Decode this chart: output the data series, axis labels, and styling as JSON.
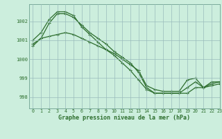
{
  "background_color": "#cceedd",
  "plot_bg_color": "#cceedd",
  "grid_color": "#99bbbb",
  "line_color": "#2d6e2d",
  "title": "Graphe pression niveau de la mer (hPa)",
  "ylabel_ticks": [
    998,
    999,
    1000,
    1001,
    1002
  ],
  "xlim": [
    -0.5,
    23
  ],
  "ylim": [
    997.4,
    1002.9
  ],
  "series1": [
    1000.7,
    1001.1,
    1001.9,
    1002.4,
    1002.4,
    1002.2,
    1001.8,
    1001.4,
    1001.1,
    1000.8,
    1000.4,
    1000.1,
    999.8,
    999.3,
    998.5,
    998.2,
    998.2,
    998.2,
    998.2,
    998.2,
    998.5,
    998.5,
    998.7,
    998.8
  ],
  "series2": [
    1001.0,
    1001.4,
    1002.1,
    1002.5,
    1002.5,
    1002.3,
    1001.7,
    1001.3,
    1000.9,
    1000.5,
    1000.2,
    999.8,
    999.4,
    998.9,
    998.4,
    998.2,
    998.2,
    998.2,
    998.2,
    998.5,
    998.8,
    998.5,
    998.8,
    998.8
  ],
  "series3": [
    1000.8,
    1001.1,
    1001.2,
    1001.3,
    1001.4,
    1001.3,
    1001.1,
    1000.9,
    1000.7,
    1000.5,
    1000.3,
    1000.0,
    999.7,
    999.4,
    998.6,
    998.4,
    998.3,
    998.3,
    998.3,
    998.9,
    999.0,
    998.5,
    998.6,
    998.7
  ]
}
